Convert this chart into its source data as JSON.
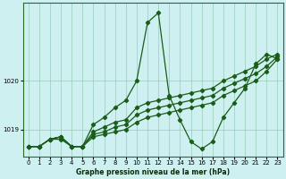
{
  "xlabel": "Graphe pression niveau de la mer (hPa)",
  "bg_color": "#cff0f0",
  "grid_color": "#99ccbb",
  "line_color": "#1a5c1a",
  "xlim": [
    -0.5,
    23.5
  ],
  "ylim": [
    1018.45,
    1021.6
  ],
  "yticks": [
    1019,
    1020
  ],
  "xticks": [
    0,
    1,
    2,
    3,
    4,
    5,
    6,
    7,
    8,
    9,
    10,
    11,
    12,
    13,
    14,
    15,
    16,
    17,
    18,
    19,
    20,
    21,
    22,
    23
  ],
  "series": [
    [
      1018.65,
      1018.65,
      1018.8,
      1018.8,
      1018.65,
      1018.65,
      1019.1,
      1019.25,
      1019.45,
      1019.6,
      1020.0,
      1021.2,
      1021.4,
      1019.7,
      1019.2,
      1018.75,
      1018.6,
      1018.75,
      1019.25,
      1019.55,
      1019.85,
      1020.35,
      1020.55,
      1020.45
    ],
    [
      1018.65,
      1018.65,
      1018.8,
      1018.85,
      1018.65,
      1018.65,
      1018.85,
      1018.9,
      1018.95,
      1019.0,
      1019.15,
      1019.25,
      1019.3,
      1019.35,
      1019.4,
      1019.45,
      1019.5,
      1019.55,
      1019.7,
      1019.8,
      1019.9,
      1020.0,
      1020.2,
      1020.45
    ],
    [
      1018.65,
      1018.65,
      1018.8,
      1018.85,
      1018.65,
      1018.65,
      1018.9,
      1018.95,
      1019.05,
      1019.1,
      1019.3,
      1019.4,
      1019.45,
      1019.5,
      1019.55,
      1019.6,
      1019.65,
      1019.7,
      1019.85,
      1019.95,
      1020.05,
      1020.15,
      1020.3,
      1020.5
    ],
    [
      1018.65,
      1018.65,
      1018.8,
      1018.85,
      1018.65,
      1018.65,
      1018.95,
      1019.05,
      1019.15,
      1019.2,
      1019.45,
      1019.55,
      1019.6,
      1019.65,
      1019.7,
      1019.75,
      1019.8,
      1019.85,
      1020.0,
      1020.1,
      1020.2,
      1020.3,
      1020.45,
      1020.55
    ]
  ]
}
